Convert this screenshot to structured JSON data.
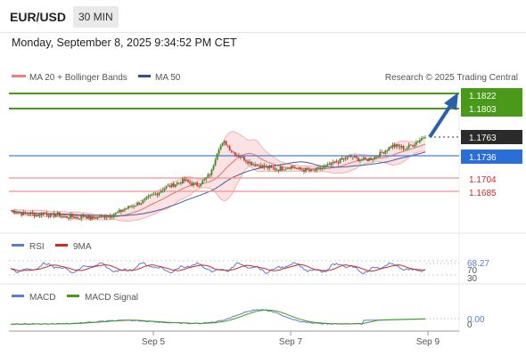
{
  "header": {
    "symbol": "EUR/USD",
    "timeframe": "30 MIN",
    "datetime": "Monday, September 8, 2025 9:34:52 PM CET"
  },
  "chart_data": [
    {
      "type": "candlestick",
      "legend": [
        {
          "label": "MA 20 + Bollinger Bands",
          "color": "#f08080"
        },
        {
          "label": "MA 50",
          "color": "#2f4f8f"
        }
      ],
      "credit": "Research © 2025 Trading Central",
      "x_ticks": [
        "Sep 5",
        "Sep 7",
        "Sep 9"
      ],
      "levels": [
        {
          "value": "1.1822",
          "color": "#4a9a1a",
          "kind": "resistance"
        },
        {
          "value": "1.1803",
          "color": "#4a9a1a",
          "kind": "resistance"
        },
        {
          "value": "1.1763",
          "color": "#333333",
          "kind": "last_price"
        },
        {
          "value": "1.1736",
          "color": "#2b6fd6",
          "kind": "pivot"
        },
        {
          "value": "1.1704",
          "color": "#d62728",
          "kind": "support"
        },
        {
          "value": "1.1685",
          "color": "#d62728",
          "kind": "support"
        }
      ],
      "arrow": {
        "direction": "up",
        "from": "1.1763",
        "to": "1.1822"
      },
      "price_path": [
        1.1658,
        1.1656,
        1.1653,
        1.1654,
        1.1652,
        1.1655,
        1.1651,
        1.1653,
        1.1649,
        1.165,
        1.1648,
        1.1651,
        1.1647,
        1.1649,
        1.165,
        1.1652,
        1.1655,
        1.166,
        1.1664,
        1.1668,
        1.1672,
        1.1678,
        1.1683,
        1.169,
        1.1693,
        1.1697,
        1.17,
        1.1696,
        1.1694,
        1.1701,
        1.1712,
        1.1745,
        1.1754,
        1.1742,
        1.1735,
        1.173,
        1.1724,
        1.1722,
        1.1719,
        1.1717,
        1.1716,
        1.1718,
        1.172,
        1.1716,
        1.1715,
        1.1713,
        1.1716,
        1.1719,
        1.1723,
        1.1727,
        1.1731,
        1.1733,
        1.173,
        1.1729,
        1.1731,
        1.1736,
        1.1742,
        1.1749,
        1.1748,
        1.1745,
        1.175,
        1.1756,
        1.1763
      ]
    },
    {
      "type": "line",
      "legend": [
        {
          "label": "RSI",
          "color": "#5b7bd5"
        },
        {
          "label": "9MA",
          "color": "#d62728"
        }
      ],
      "y_ticks": [
        "70",
        "30"
      ],
      "last_value": "68.27"
    },
    {
      "type": "line",
      "legend": [
        {
          "label": "MACD",
          "color": "#5b7bd5"
        },
        {
          "label": "MACD Signal",
          "color": "#4a9a1a"
        }
      ],
      "y_ticks": [
        "0"
      ],
      "last_value": "0.00"
    }
  ]
}
